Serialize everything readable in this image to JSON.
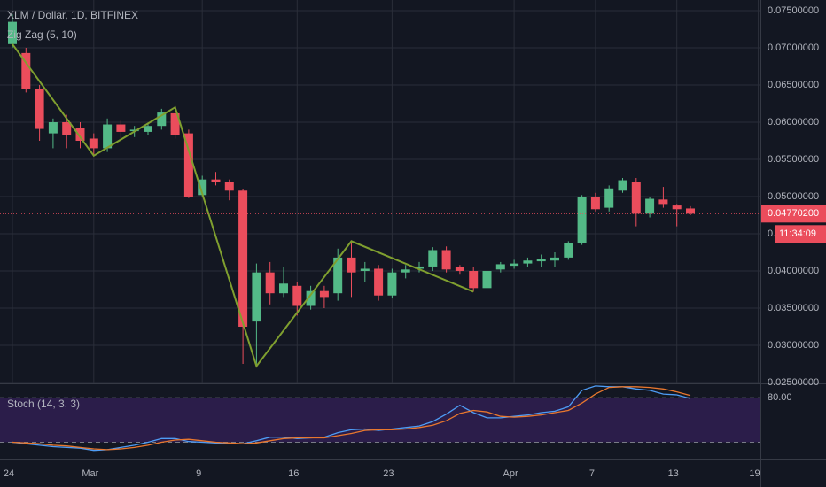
{
  "chart_data": [
    {
      "type": "candlestick",
      "title": "XLM / Dollar, 1D, BITFINEX",
      "x": [
        "Feb 24",
        "Feb 25",
        "Feb 26",
        "Feb 27",
        "Feb 28",
        "Feb 29",
        "Mar 1",
        "Mar 2",
        "Mar 3",
        "Mar 4",
        "Mar 5",
        "Mar 6",
        "Mar 7",
        "Mar 8",
        "Mar 9",
        "Mar 10",
        "Mar 11",
        "Mar 12",
        "Mar 13",
        "Mar 14",
        "Mar 15",
        "Mar 16",
        "Mar 17",
        "Mar 18",
        "Mar 19",
        "Mar 20",
        "Mar 21",
        "Mar 22",
        "Mar 23",
        "Mar 24",
        "Mar 25",
        "Mar 26",
        "Mar 27",
        "Mar 28",
        "Mar 29",
        "Mar 30",
        "Mar 31",
        "Apr 1",
        "Apr 2",
        "Apr 3",
        "Apr 4",
        "Apr 5",
        "Apr 6",
        "Apr 7",
        "Apr 8",
        "Apr 9",
        "Apr 10",
        "Apr 11",
        "Apr 12",
        "Apr 13",
        "Apr 14"
      ],
      "open": [
        0.0705,
        0.0693,
        0.0645,
        0.0585,
        0.06,
        0.0592,
        0.0578,
        0.0565,
        0.0597,
        0.0588,
        0.0587,
        0.0595,
        0.0612,
        0.0585,
        0.0502,
        0.0523,
        0.052,
        0.0508,
        0.0332,
        0.0398,
        0.037,
        0.038,
        0.0353,
        0.0373,
        0.037,
        0.0418,
        0.04,
        0.0403,
        0.0367,
        0.0398,
        0.0403,
        0.0406,
        0.0428,
        0.0405,
        0.04,
        0.0377,
        0.0402,
        0.0407,
        0.041,
        0.0413,
        0.0414,
        0.0418,
        0.0437,
        0.05,
        0.0485,
        0.0508,
        0.052,
        0.0477,
        0.0496,
        0.0488,
        0.0484
      ],
      "high": [
        0.0745,
        0.07,
        0.065,
        0.0605,
        0.061,
        0.06,
        0.0585,
        0.0605,
        0.0602,
        0.0595,
        0.0598,
        0.0618,
        0.062,
        0.059,
        0.0528,
        0.0533,
        0.0523,
        0.051,
        0.041,
        0.0412,
        0.0405,
        0.0385,
        0.038,
        0.038,
        0.043,
        0.044,
        0.0412,
        0.0408,
        0.0403,
        0.0408,
        0.0412,
        0.0432,
        0.0433,
        0.0408,
        0.0405,
        0.0405,
        0.0412,
        0.0415,
        0.0418,
        0.0422,
        0.0425,
        0.044,
        0.0502,
        0.0505,
        0.0515,
        0.0525,
        0.0525,
        0.05,
        0.0513,
        0.049,
        0.0487
      ],
      "low": [
        0.07,
        0.064,
        0.0575,
        0.0565,
        0.0565,
        0.0565,
        0.0555,
        0.056,
        0.0575,
        0.058,
        0.0583,
        0.059,
        0.0578,
        0.0498,
        0.05,
        0.0515,
        0.0495,
        0.0275,
        0.0272,
        0.0355,
        0.0365,
        0.034,
        0.0348,
        0.035,
        0.036,
        0.0365,
        0.0385,
        0.036,
        0.0363,
        0.039,
        0.0398,
        0.04,
        0.0398,
        0.0395,
        0.0372,
        0.0373,
        0.0398,
        0.0403,
        0.0406,
        0.0405,
        0.0405,
        0.0415,
        0.0435,
        0.048,
        0.048,
        0.0505,
        0.046,
        0.0472,
        0.0485,
        0.046,
        0.0475
      ],
      "close": [
        0.0735,
        0.0645,
        0.0591,
        0.06,
        0.0583,
        0.0575,
        0.0565,
        0.0597,
        0.0587,
        0.059,
        0.0595,
        0.0613,
        0.0583,
        0.05,
        0.0523,
        0.052,
        0.0508,
        0.0325,
        0.0398,
        0.037,
        0.0383,
        0.0353,
        0.0373,
        0.0365,
        0.0418,
        0.0398,
        0.0403,
        0.0367,
        0.0398,
        0.0402,
        0.0406,
        0.0428,
        0.0402,
        0.04,
        0.0377,
        0.04,
        0.0409,
        0.041,
        0.0414,
        0.0416,
        0.0418,
        0.0438,
        0.05,
        0.0483,
        0.0511,
        0.0522,
        0.0477,
        0.0497,
        0.049,
        0.0483,
        0.0477
      ],
      "up_color": "#53b987",
      "down_color": "#eb4d5c",
      "ylim": [
        0.02488,
        0.07643
      ],
      "yticks": [
        {
          "value": 0.025,
          "label": "0.02500000"
        },
        {
          "value": 0.03,
          "label": "0.03000000"
        },
        {
          "value": 0.035,
          "label": "0.03500000"
        },
        {
          "value": 0.04,
          "label": "0.04000000"
        },
        {
          "value": 0.045,
          "label": "0.04500000"
        },
        {
          "value": 0.05,
          "label": "0.05000000"
        },
        {
          "value": 0.055,
          "label": "0.05500000"
        },
        {
          "value": 0.06,
          "label": "0.06000000"
        },
        {
          "value": 0.065,
          "label": "0.06500000"
        },
        {
          "value": 0.07,
          "label": "0.07000000"
        },
        {
          "value": 0.075,
          "label": "0.07500000"
        }
      ],
      "xticks": [
        {
          "value": "Feb 24",
          "label": "24"
        },
        {
          "value": "Mar 1",
          "label": "Mar"
        },
        {
          "value": "Mar 9",
          "label": "9"
        },
        {
          "value": "Mar 16",
          "label": "16"
        },
        {
          "value": "Mar 23",
          "label": "23"
        },
        {
          "value": "Apr 1",
          "label": "Apr"
        },
        {
          "value": "Apr 7",
          "label": "7"
        },
        {
          "value": "Apr 13",
          "label": "13"
        },
        {
          "value": "Apr 19",
          "label": "19"
        }
      ],
      "grid": true,
      "last_price": {
        "value": 0.047702,
        "label": "0.04770200"
      },
      "countdown": "11:34:09",
      "overlay": {
        "name": "Zig Zag (5, 10)",
        "color": "#7f9f2f",
        "x": [
          "Feb 24",
          "Mar 1",
          "Mar 7",
          "Mar 13",
          "Mar 20",
          "Mar 29"
        ],
        "values": [
          0.0705,
          0.0555,
          0.062,
          0.0272,
          0.044,
          0.0372
        ]
      }
    },
    {
      "type": "line",
      "title": "Stoch (14, 3, 3)",
      "x": [
        "Feb 24",
        "Feb 25",
        "Feb 26",
        "Feb 27",
        "Feb 28",
        "Feb 29",
        "Mar 1",
        "Mar 2",
        "Mar 3",
        "Mar 4",
        "Mar 5",
        "Mar 6",
        "Mar 7",
        "Mar 8",
        "Mar 9",
        "Mar 10",
        "Mar 11",
        "Mar 12",
        "Mar 13",
        "Mar 14",
        "Mar 15",
        "Mar 16",
        "Mar 17",
        "Mar 18",
        "Mar 19",
        "Mar 20",
        "Mar 21",
        "Mar 22",
        "Mar 23",
        "Mar 24",
        "Mar 25",
        "Mar 26",
        "Mar 27",
        "Mar 28",
        "Mar 29",
        "Mar 30",
        "Mar 31",
        "Apr 1",
        "Apr 2",
        "Apr 3",
        "Apr 4",
        "Apr 5",
        "Apr 6",
        "Apr 7",
        "Apr 8",
        "Apr 9",
        "Apr 10",
        "Apr 11",
        "Apr 12",
        "Apr 13",
        "Apr 14"
      ],
      "series": [
        {
          "color": "#4e9cf5",
          "values": [
            20,
            18,
            16,
            14,
            13,
            12,
            9,
            10,
            13,
            16,
            20,
            25,
            25,
            21,
            20,
            19,
            18,
            18,
            22,
            27,
            27,
            25,
            26,
            27,
            33,
            37,
            38,
            36,
            38,
            40,
            42,
            48,
            58,
            70,
            60,
            53,
            53,
            55,
            57,
            60,
            62,
            68,
            90,
            96,
            95,
            95,
            92,
            90,
            85,
            84,
            79
          ]
        },
        {
          "color": "#e8772e",
          "values": [
            20,
            19,
            18,
            16,
            15,
            13,
            11,
            10,
            11,
            13,
            16,
            20,
            23,
            24,
            22,
            20,
            19,
            18,
            19,
            22,
            25,
            26,
            26,
            26,
            29,
            32,
            36,
            37,
            37,
            38,
            40,
            43,
            49,
            59,
            63,
            61,
            55,
            54,
            55,
            57,
            60,
            63,
            73,
            85,
            94,
            95,
            95,
            94,
            92,
            88,
            83
          ]
        }
      ],
      "ylim": [
        -2.1,
        98.3
      ],
      "yticks": [
        {
          "value": 80,
          "label": "80.00"
        }
      ],
      "band": [
        20,
        80
      ],
      "band_color": "#2b1d4a"
    }
  ]
}
